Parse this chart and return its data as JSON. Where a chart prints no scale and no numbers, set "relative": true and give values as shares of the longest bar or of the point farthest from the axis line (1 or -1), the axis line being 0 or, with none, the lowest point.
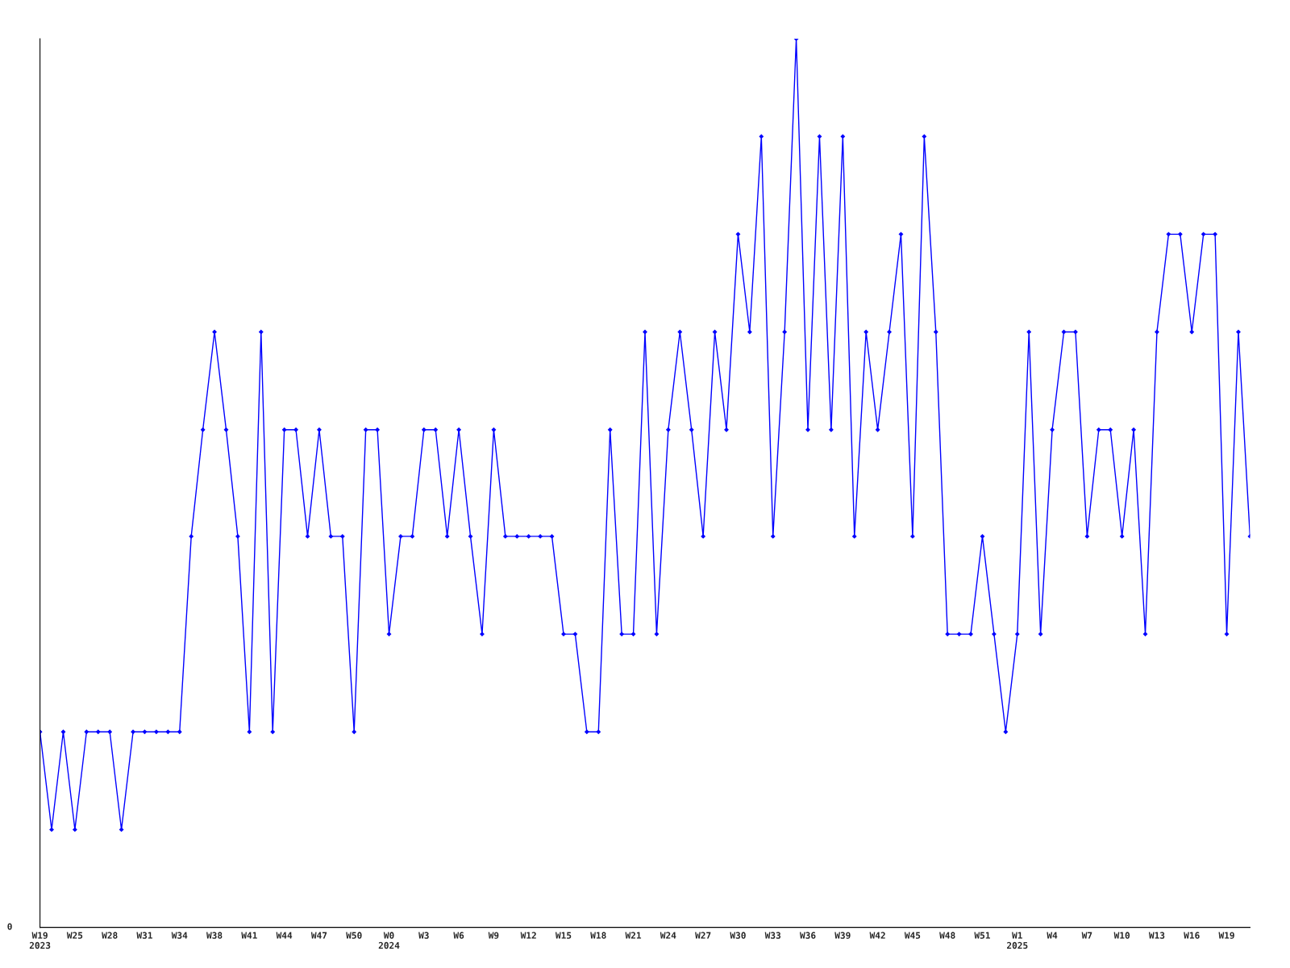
{
  "chart_data": {
    "type": "line",
    "relative": true,
    "marker": "diamond",
    "line_style": "solid",
    "grid": false,
    "legend": false,
    "categories": [
      "W19\n2023",
      null,
      null,
      "W25",
      null,
      null,
      "W28",
      null,
      null,
      "W31",
      null,
      null,
      "W34",
      null,
      null,
      "W38",
      null,
      null,
      "W41",
      null,
      null,
      "W44",
      null,
      null,
      "W47",
      null,
      null,
      "W50",
      null,
      null,
      "W0\n2024",
      null,
      null,
      "W3",
      null,
      null,
      "W6",
      null,
      null,
      "W9",
      null,
      null,
      "W12",
      null,
      null,
      "W15",
      null,
      null,
      "W18",
      null,
      null,
      "W21",
      null,
      null,
      "W24",
      null,
      null,
      "W27",
      null,
      null,
      "W30",
      null,
      null,
      "W33",
      null,
      null,
      "W36",
      null,
      null,
      "W39",
      null,
      null,
      "W42",
      null,
      null,
      "W45",
      null,
      null,
      "W48",
      null,
      null,
      "W51",
      null,
      null,
      "W1\n2025",
      null,
      null,
      "W4",
      null,
      null,
      "W7",
      null,
      null,
      "W10",
      null,
      null,
      "W13",
      null,
      null,
      "W16",
      null,
      null,
      "W19",
      null,
      null
    ],
    "series": [
      {
        "color": "#0000ff",
        "values": [
          0.22,
          0.11,
          0.22,
          0.11,
          0.22,
          0.22,
          0.22,
          0.11,
          0.22,
          0.22,
          0.22,
          0.22,
          0.22,
          0.44,
          0.56,
          0.67,
          0.56,
          0.44,
          0.22,
          0.67,
          0.22,
          0.56,
          0.56,
          0.44,
          0.56,
          0.44,
          0.44,
          0.22,
          0.56,
          0.56,
          0.33,
          0.44,
          0.44,
          0.56,
          0.56,
          0.44,
          0.56,
          0.44,
          0.33,
          0.56,
          0.44,
          0.44,
          0.44,
          0.44,
          0.44,
          0.33,
          0.33,
          0.22,
          0.22,
          0.56,
          0.33,
          0.33,
          0.67,
          0.33,
          0.56,
          0.67,
          0.56,
          0.44,
          0.67,
          0.56,
          0.78,
          0.67,
          0.89,
          0.44,
          0.67,
          1,
          0.56,
          0.89,
          0.56,
          0.89,
          0.44,
          0.67,
          0.56,
          0.67,
          0.78,
          0.44,
          0.89,
          0.67,
          0.33,
          0.33,
          0.33,
          0.44,
          0.33,
          0.22,
          0.33,
          0.67,
          0.33,
          0.56,
          0.67,
          0.67,
          0.44,
          0.56,
          0.56,
          0.44,
          0.56,
          0.33,
          0.67,
          0.78,
          0.78,
          0.67,
          0.78,
          0.78,
          0.33,
          0.67,
          0.44
        ]
      }
    ],
    "annotations": [
      "0"
    ]
  }
}
